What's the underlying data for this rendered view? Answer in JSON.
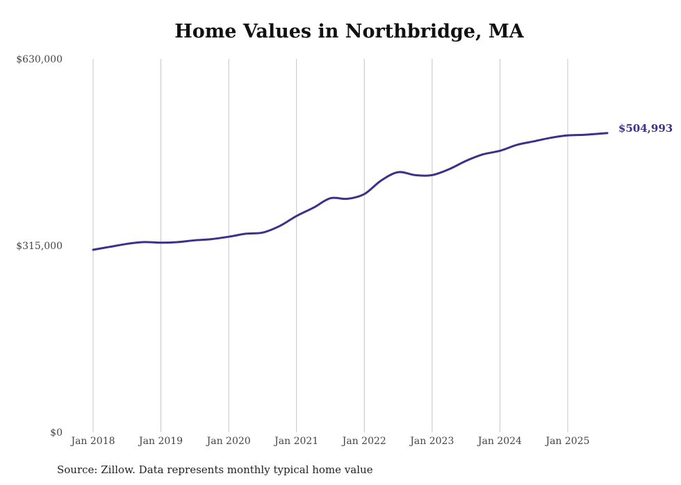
{
  "chart_data": {
    "type": "line",
    "title": "Home Values in Northbridge, MA",
    "source": "Source: Zillow. Data represents monthly typical home value",
    "xlabel": "",
    "ylabel": "",
    "ylim": [
      0,
      630000
    ],
    "y_ticks": [
      0,
      315000,
      630000
    ],
    "y_tick_labels": [
      "$0",
      "$315,000",
      "$630,000"
    ],
    "x_tick_labels": [
      "Jan 2018",
      "Jan 2019",
      "Jan 2020",
      "Jan 2021",
      "Jan 2022",
      "Jan 2023",
      "Jan 2024",
      "Jan 2025"
    ],
    "x_range_months": [
      "2018-01",
      "2025-08"
    ],
    "grid": "vertical",
    "line_color": "#3b318a",
    "end_label": "$504,993",
    "series": [
      {
        "name": "Typical home value",
        "points": [
          {
            "date": "2018-01",
            "value": 308000
          },
          {
            "date": "2018-04",
            "value": 313000
          },
          {
            "date": "2018-07",
            "value": 318000
          },
          {
            "date": "2018-10",
            "value": 321000
          },
          {
            "date": "2019-01",
            "value": 320000
          },
          {
            "date": "2019-04",
            "value": 321000
          },
          {
            "date": "2019-07",
            "value": 324000
          },
          {
            "date": "2019-10",
            "value": 326000
          },
          {
            "date": "2020-01",
            "value": 330000
          },
          {
            "date": "2020-04",
            "value": 335000
          },
          {
            "date": "2020-07",
            "value": 337000
          },
          {
            "date": "2020-10",
            "value": 348000
          },
          {
            "date": "2021-01",
            "value": 365000
          },
          {
            "date": "2021-04",
            "value": 379000
          },
          {
            "date": "2021-07",
            "value": 395000
          },
          {
            "date": "2021-10",
            "value": 394000
          },
          {
            "date": "2022-01",
            "value": 402000
          },
          {
            "date": "2022-04",
            "value": 425000
          },
          {
            "date": "2022-07",
            "value": 439000
          },
          {
            "date": "2022-10",
            "value": 434000
          },
          {
            "date": "2023-01",
            "value": 434000
          },
          {
            "date": "2023-04",
            "value": 444000
          },
          {
            "date": "2023-07",
            "value": 458000
          },
          {
            "date": "2023-10",
            "value": 469000
          },
          {
            "date": "2024-01",
            "value": 475000
          },
          {
            "date": "2024-04",
            "value": 485000
          },
          {
            "date": "2024-07",
            "value": 491000
          },
          {
            "date": "2024-10",
            "value": 497000
          },
          {
            "date": "2025-01",
            "value": 501000
          },
          {
            "date": "2025-04",
            "value": 502000
          },
          {
            "date": "2025-08",
            "value": 504993
          }
        ]
      }
    ]
  }
}
